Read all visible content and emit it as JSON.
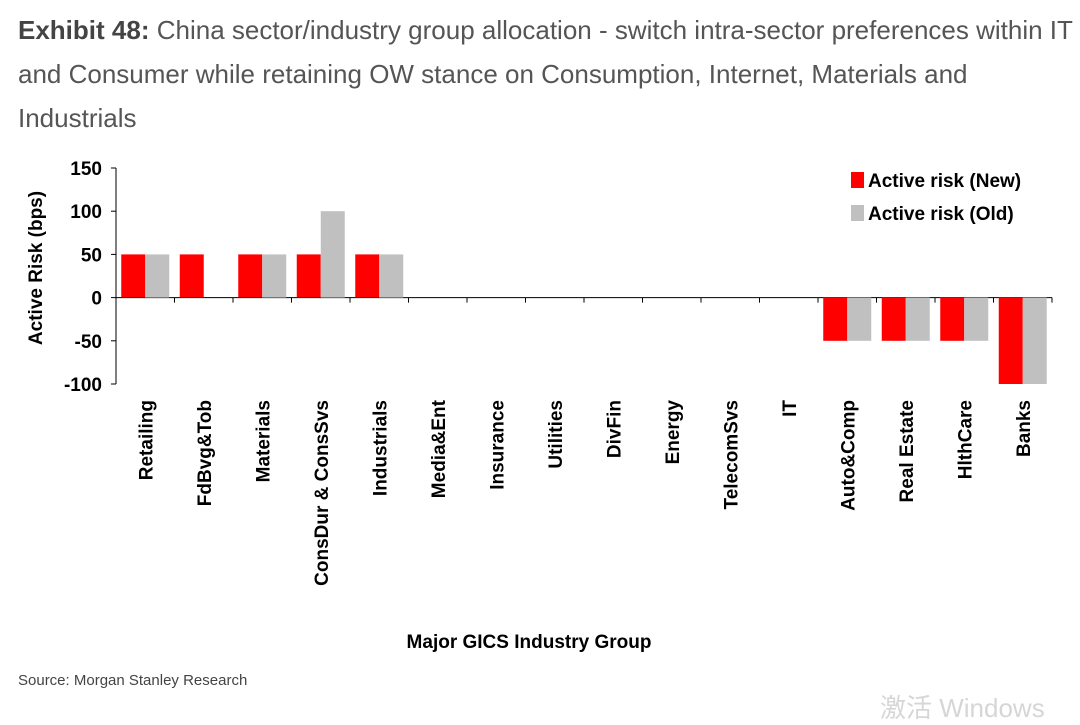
{
  "exhibit": {
    "label": "Exhibit 48:",
    "title": "China sector/industry group allocation - switch intra-sector preferences within IT and Consumer while retaining OW stance on Consumption, Internet, Materials and Industrials"
  },
  "chart_data": {
    "type": "bar",
    "ylabel": "Active Risk (bps)",
    "xlabel": "Major GICS Industry Group",
    "ylim": [
      -100,
      150
    ],
    "yticks": [
      150,
      100,
      50,
      0,
      -50,
      -100
    ],
    "legend_position": "top-right",
    "grid": false,
    "categories": [
      "Retailing",
      "FdBvg&Tob",
      "Materials",
      "ConsDur & ConsSvs",
      "Industrials",
      "Media&Ent",
      "Insurance",
      "Utilities",
      "DivFin",
      "Energy",
      "TelecomSvs",
      "IT",
      "Auto&Comp",
      "Real Estate",
      "HlthCare",
      "Banks"
    ],
    "series": [
      {
        "name": "Active risk (New)",
        "color": "#ff0000",
        "values": [
          50,
          50,
          50,
          50,
          50,
          0,
          0,
          0,
          0,
          0,
          0,
          0,
          -50,
          -50,
          -50,
          -100
        ]
      },
      {
        "name": "Active risk (Old)",
        "color": "#c0c0c0",
        "values": [
          50,
          0,
          50,
          100,
          50,
          0,
          0,
          0,
          0,
          0,
          0,
          0,
          -50,
          -50,
          -50,
          -100
        ]
      }
    ]
  },
  "source": "Source: Morgan Stanley Research",
  "watermark": "激活 Windows"
}
